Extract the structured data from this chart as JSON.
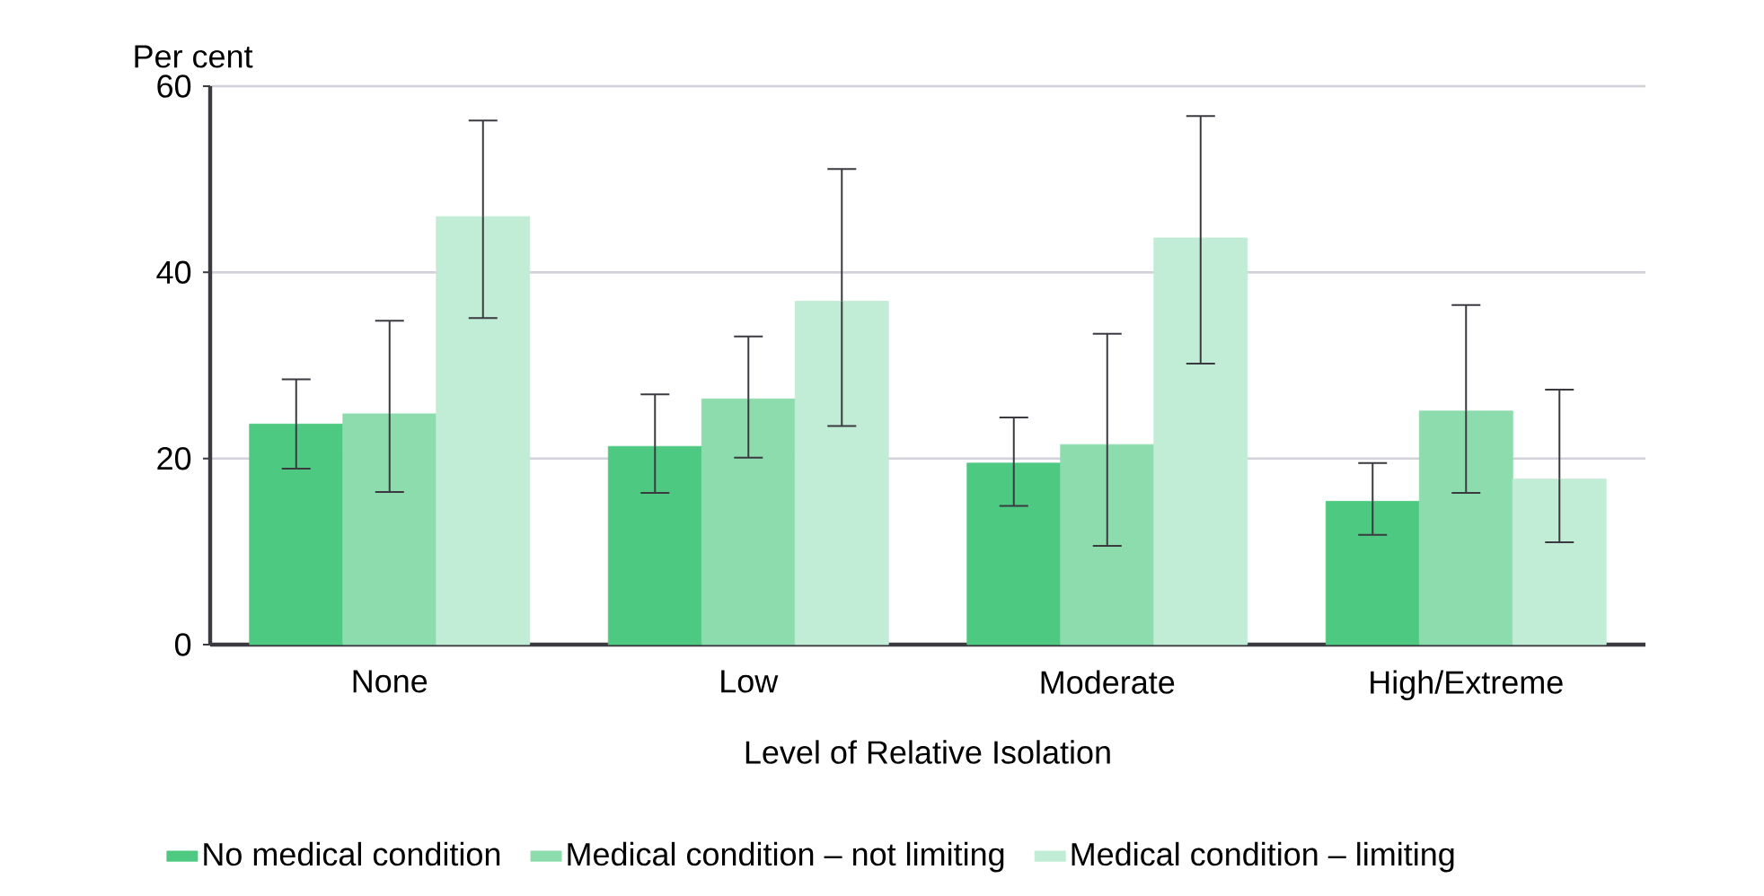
{
  "chart_data": {
    "type": "bar",
    "xlabel": "Level of Relative Isolation",
    "ylabel": "Per cent",
    "categories": [
      "None",
      "Low",
      "Moderate",
      "High/Extreme"
    ],
    "series": [
      {
        "name": "No medical condition",
        "color": "#4ec982",
        "values": [
          23.7,
          21.3,
          19.5,
          15.4
        ],
        "errors": [
          [
            18.9,
            28.5
          ],
          [
            16.3,
            26.9
          ],
          [
            14.9,
            24.4
          ],
          [
            11.8,
            19.5
          ]
        ]
      },
      {
        "name": "Medical condition – not limiting",
        "color": "#8ddcae",
        "values": [
          24.8,
          26.4,
          21.5,
          25.1
        ],
        "errors": [
          [
            16.4,
            34.8
          ],
          [
            20.1,
            33.1
          ],
          [
            10.6,
            33.4
          ],
          [
            16.3,
            36.5
          ]
        ]
      },
      {
        "name": "Medical condition – limiting",
        "color": "#c1ecd5",
        "values": [
          46.0,
          36.9,
          43.7,
          17.8
        ],
        "errors": [
          [
            35.1,
            56.3
          ],
          [
            23.5,
            51.1
          ],
          [
            30.2,
            56.8
          ],
          [
            11.0,
            27.4
          ]
        ]
      }
    ],
    "ylim": [
      0,
      60
    ],
    "yticks": [
      0,
      20,
      40,
      60
    ],
    "grid": "y",
    "legend": "bottom"
  }
}
